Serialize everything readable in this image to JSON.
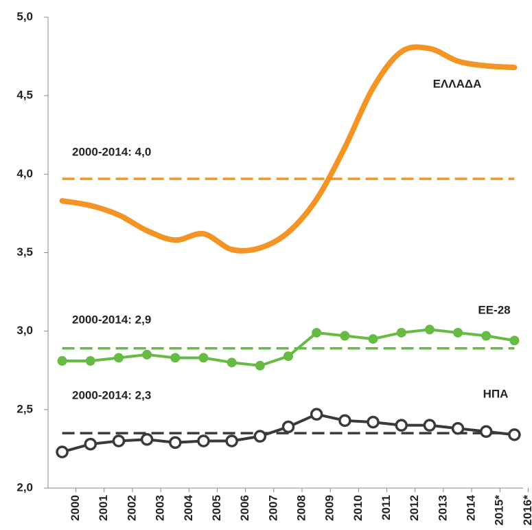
{
  "chart_data": {
    "type": "line",
    "categories": [
      "2000",
      "2001",
      "2002",
      "2003",
      "2004",
      "2005",
      "2006",
      "2007",
      "2008",
      "2009",
      "2010",
      "2011",
      "2012",
      "2013",
      "2014",
      "2015*",
      "2016*"
    ],
    "series": [
      {
        "name": "ΕΛΛΑΔΑ",
        "color": "#f39425",
        "marker": "none",
        "smooth": true,
        "values": [
          3.83,
          3.8,
          3.74,
          3.64,
          3.58,
          3.62,
          3.52,
          3.53,
          3.63,
          3.84,
          4.17,
          4.55,
          4.78,
          4.8,
          4.72,
          4.69,
          4.68
        ],
        "mean": 3.97,
        "mean_label": "2000-2014: 4,0"
      },
      {
        "name": "ΕΕ-28",
        "color": "#66bb44",
        "marker": "filled",
        "smooth": false,
        "values": [
          2.81,
          2.81,
          2.83,
          2.85,
          2.83,
          2.83,
          2.8,
          2.78,
          2.84,
          2.99,
          2.97,
          2.95,
          2.99,
          3.01,
          2.99,
          2.97,
          2.94
        ],
        "mean": 2.89,
        "mean_label": "2000-2014: 2,9"
      },
      {
        "name": "ΗΠΑ",
        "color": "#3a3a3a",
        "marker": "hollow",
        "smooth": false,
        "values": [
          2.23,
          2.28,
          2.3,
          2.31,
          2.29,
          2.3,
          2.3,
          2.33,
          2.39,
          2.47,
          2.43,
          2.42,
          2.4,
          2.4,
          2.38,
          2.36,
          2.34
        ],
        "mean": 2.35,
        "mean_label": "2000-2014: 2,3"
      }
    ],
    "ylim": [
      2,
      5
    ],
    "yticks": [
      {
        "value": 2,
        "label": "2,0"
      },
      {
        "value": 2.5,
        "label": "2,5"
      },
      {
        "value": 3,
        "label": "3,0"
      },
      {
        "value": 3.5,
        "label": "3,5"
      },
      {
        "value": 4,
        "label": "4,0"
      },
      {
        "value": 4.5,
        "label": "4,5"
      },
      {
        "value": 5,
        "label": "5,0"
      }
    ]
  }
}
